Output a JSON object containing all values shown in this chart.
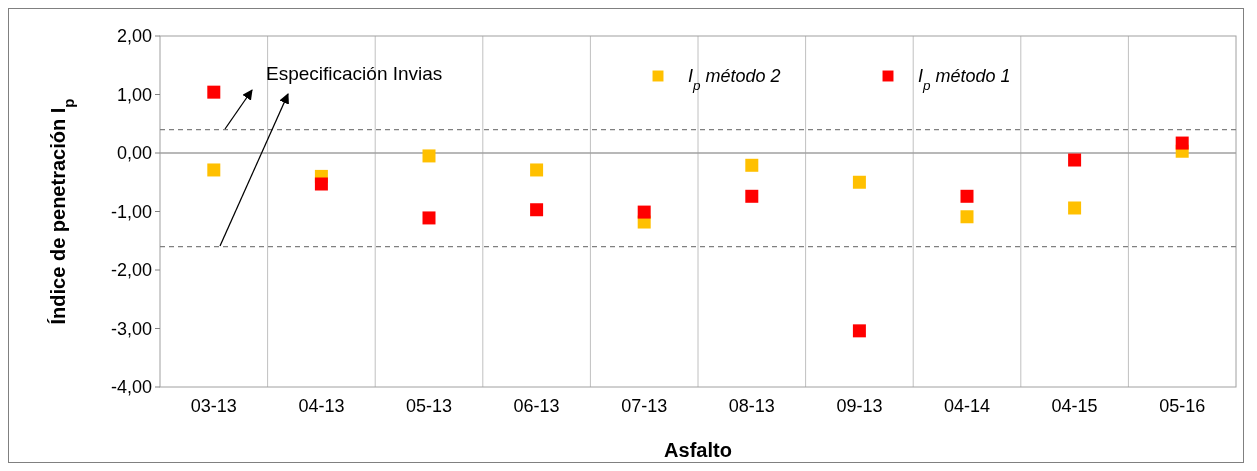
{
  "chart_data": {
    "type": "scatter",
    "xlabel": "Asfalto",
    "ylabel": "Índice de penetración  I$_{p}$",
    "categories": [
      "03-13",
      "04-13",
      "05-13",
      "06-13",
      "07-13",
      "08-13",
      "09-13",
      "04-14",
      "04-15",
      "05-16"
    ],
    "series": [
      {
        "name": "I$_{p}$ método 2",
        "color": "#ffc000",
        "values": [
          -0.29,
          -0.4,
          -0.05,
          -0.29,
          -1.18,
          -0.21,
          -0.5,
          -1.09,
          -0.94,
          0.03
        ]
      },
      {
        "name": "I$_{p}$ método 1",
        "color": "#ff0000",
        "values": [
          1.04,
          -0.53,
          -1.11,
          -0.97,
          -1.01,
          -0.74,
          -3.04,
          -0.74,
          -0.12,
          0.17
        ]
      }
    ],
    "ylim": [
      -4,
      2
    ],
    "yticks": [
      {
        "value": -4,
        "label": "-4,00"
      },
      {
        "value": -3,
        "label": "-3,00"
      },
      {
        "value": -2,
        "label": "-2,00"
      },
      {
        "value": -1,
        "label": "-1,00"
      },
      {
        "value": 0,
        "label": "0,00"
      },
      {
        "value": 1,
        "label": "1,00"
      },
      {
        "value": 2,
        "label": "2,00"
      }
    ],
    "grid": "x",
    "legend": "top right",
    "marker": "square",
    "ref_lines": [
      {
        "axis": "y",
        "value": 0.4,
        "color": "#808080",
        "line_style": "dashed"
      },
      {
        "axis": "y",
        "value": -1.6,
        "color": "#808080",
        "line_style": "dashed"
      },
      {
        "axis": "y",
        "value": 0,
        "color": "#a0a0a0",
        "line_style": "solid"
      }
    ],
    "annotations": [
      "Especificación Invias"
    ]
  }
}
